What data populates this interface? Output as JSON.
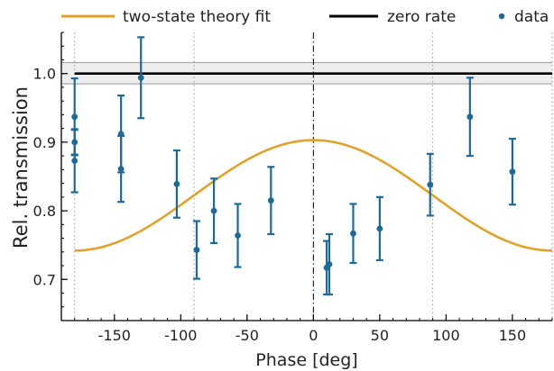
{
  "chart_data": {
    "type": "scatter",
    "xlabel": "Phase [deg]",
    "ylabel": "Rel. transmission",
    "xlim": [
      -190,
      180
    ],
    "ylim": [
      0.64,
      1.06
    ],
    "xticks": [
      -150,
      -100,
      -50,
      0,
      50,
      100,
      150
    ],
    "yticks": [
      0.7,
      0.8,
      0.9,
      1.0
    ],
    "xtick_labels": [
      "-150",
      "-100",
      "-50",
      "0",
      "50",
      "100",
      "150"
    ],
    "ytick_labels": [
      "0.7",
      "0.8",
      "0.9",
      "1.0"
    ],
    "grid": "dotted vertical lines at -180, -90, 90, 180; dash-dot line at 0",
    "reference_lines_x": [
      -180,
      -90,
      90,
      180
    ],
    "center_line_x": 0,
    "legend_position": "top",
    "series": [
      {
        "name": "two-state theory fit",
        "kind": "line",
        "color": "#e0a22e",
        "mean": 0.8225,
        "amplitude": 0.0805,
        "function": "mean + amplitude * cos(phase)",
        "x_range": [
          -180,
          180
        ]
      },
      {
        "name": "zero rate",
        "kind": "hline",
        "color": "#000000",
        "value": 1.0,
        "band": [
          0.985,
          1.016
        ],
        "band_color": "#eeeeee"
      },
      {
        "name": "data",
        "kind": "errorbar",
        "color": "#1e6a96",
        "points": [
          {
            "x": -180,
            "y": 0.937,
            "err": 0.056
          },
          {
            "x": -180,
            "y": 0.873,
            "err": 0.046
          },
          {
            "x": -180,
            "y": 0.9,
            "err": 0.018
          },
          {
            "x": -145,
            "y": 0.912,
            "err": 0.056
          },
          {
            "x": -145,
            "y": 0.861,
            "err": 0.048
          },
          {
            "x": -130,
            "y": 0.994,
            "err": 0.059
          },
          {
            "x": -103,
            "y": 0.839,
            "err": 0.049
          },
          {
            "x": -88,
            "y": 0.743,
            "err": 0.042
          },
          {
            "x": -75,
            "y": 0.8,
            "err": 0.047
          },
          {
            "x": -57,
            "y": 0.764,
            "err": 0.046
          },
          {
            "x": -32,
            "y": 0.815,
            "err": 0.049
          },
          {
            "x": 10,
            "y": 0.717,
            "err": 0.039
          },
          {
            "x": 12,
            "y": 0.722,
            "err": 0.044
          },
          {
            "x": 30,
            "y": 0.767,
            "err": 0.043
          },
          {
            "x": 50,
            "y": 0.774,
            "err": 0.046
          },
          {
            "x": 88,
            "y": 0.838,
            "err": 0.045
          },
          {
            "x": 118,
            "y": 0.937,
            "err": 0.057
          },
          {
            "x": 150,
            "y": 0.857,
            "err": 0.048
          }
        ]
      }
    ]
  }
}
